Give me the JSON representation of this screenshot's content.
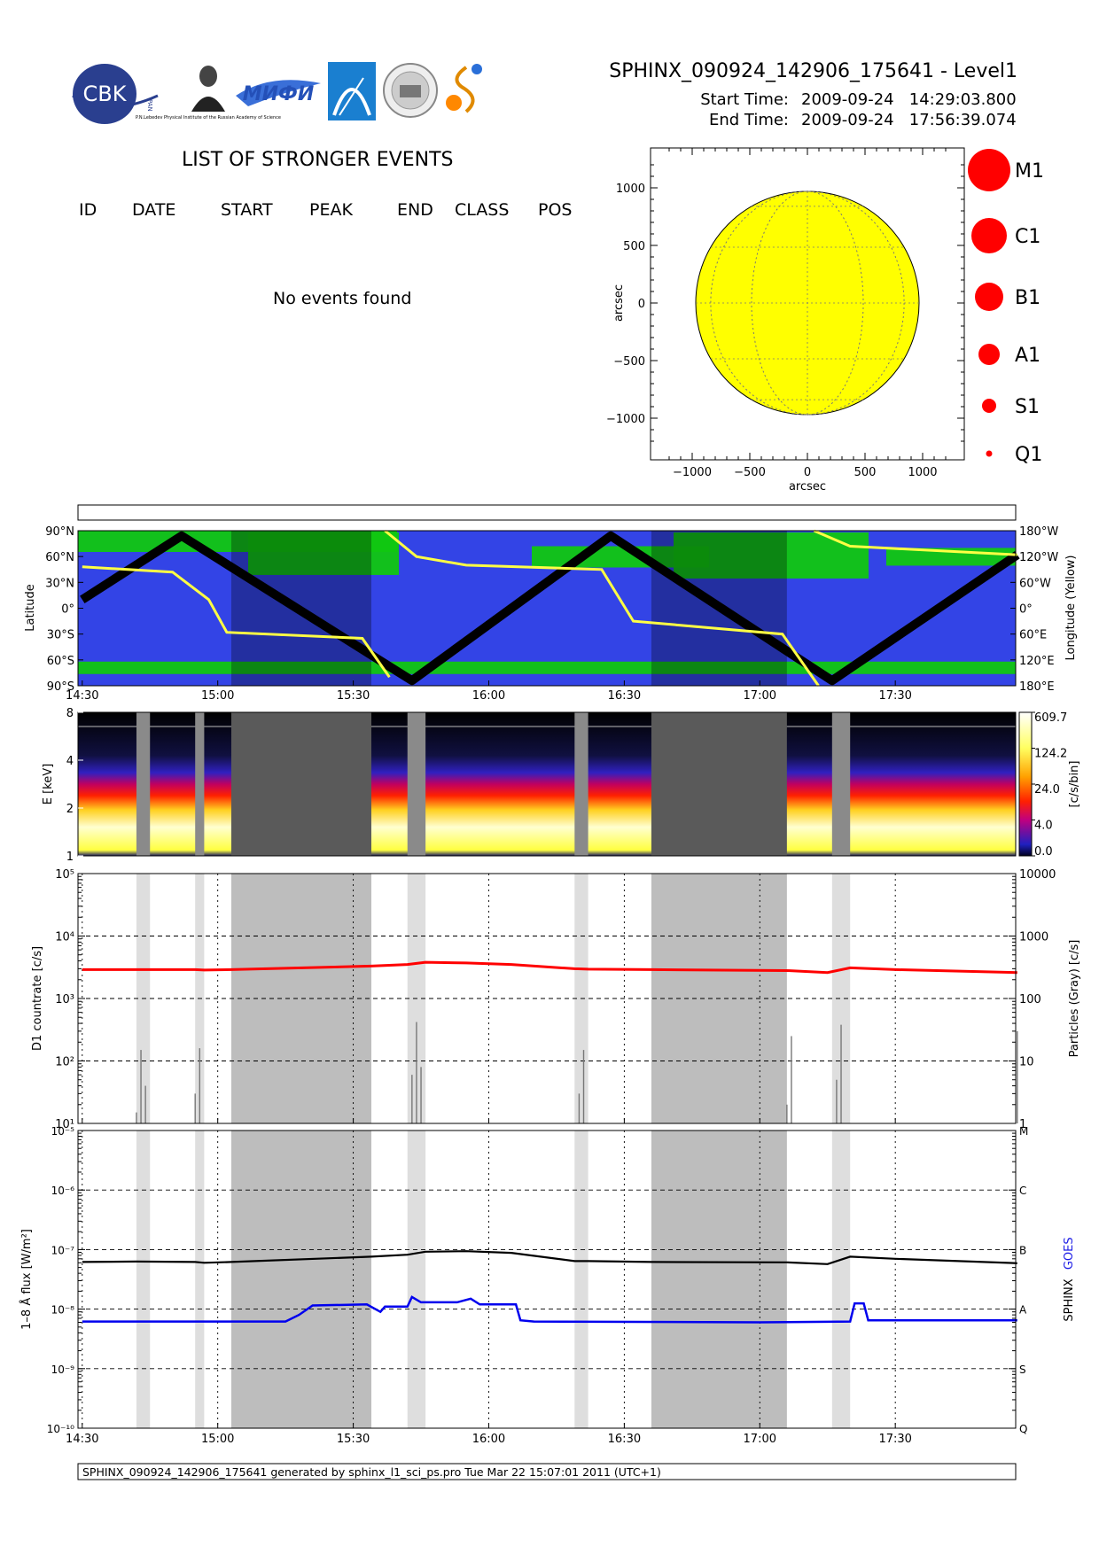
{
  "header": {
    "file_title": "SPHINX_090924_142906_175641 - Level1",
    "start_label": "Start Time:",
    "start_value": "2009-09-24   14:29:03.800",
    "end_label": "End Time:",
    "end_value": "2009-09-24   17:56:39.074"
  },
  "logos": {
    "cbk": "CBK",
    "cbk_sub": "PAN",
    "lebedev_caption": "P.N.Lebedev Physical Institute of the Russian Academy of Science",
    "mifi": "МИФИ"
  },
  "events": {
    "title": "LIST OF STRONGER EVENTS",
    "columns": [
      "ID",
      "DATE",
      "START",
      "PEAK",
      "END",
      "CLASS",
      "POS"
    ],
    "empty_text": "No events found"
  },
  "sun_map": {
    "xlabel": "arcsec",
    "ylabel": "arcsec",
    "xticks": [
      "−1000",
      "−500",
      "0",
      "500",
      "1000"
    ],
    "yticks": [
      "1000",
      "500",
      "0",
      "−500",
      "−1000"
    ],
    "disk_color": "#ffff00",
    "class_legend": [
      "M1",
      "C1",
      "B1",
      "A1",
      "S1",
      "Q1"
    ]
  },
  "footer": "SPHINX_090924_142906_175641 generated by sphinx_l1_sci_ps.pro Tue Mar 22 15:07:01 2011 (UTC+1)",
  "chart_data": [
    {
      "type": "line",
      "panel": "orbit",
      "x_ticks": [
        "14:30",
        "15:00",
        "15:30",
        "16:00",
        "16:30",
        "17:00",
        "17:30"
      ],
      "ylabel": "Latitude",
      "ylabel_right": "Longitude (Yellow)",
      "y_ticks": [
        "90°N",
        "60°N",
        "30°N",
        "0°",
        "30°S",
        "60°S",
        "90°S"
      ],
      "y_ticks_right": [
        "180°W",
        "120°W",
        "60°W",
        "0°",
        "60°E",
        "120°E",
        "180°E"
      ],
      "colors": {
        "background": "#3344e6",
        "zone": "#11c711",
        "latitude": "#000000",
        "longitude": "#ffff44"
      },
      "latitude_nodes": [
        [
          "14:30",
          10
        ],
        [
          "14:52",
          84
        ],
        [
          "15:43",
          -84
        ],
        [
          "16:27",
          84
        ],
        [
          "17:16",
          -84
        ],
        [
          "17:57",
          62
        ]
      ],
      "longitude_segments": [
        [
          [
            "14:30",
            48
          ],
          [
            "14:50",
            42
          ],
          [
            "14:58",
            10
          ],
          [
            "15:02",
            -28
          ],
          [
            "15:32",
            -35
          ],
          [
            "15:38",
            -80
          ]
        ],
        [
          [
            "15:37",
            90
          ],
          [
            "15:44",
            60
          ],
          [
            "15:55",
            50
          ],
          [
            "16:25",
            45
          ],
          [
            "16:32",
            -15
          ],
          [
            "17:05",
            -30
          ],
          [
            "17:13",
            -90
          ]
        ],
        [
          [
            "17:12",
            90
          ],
          [
            "17:20",
            72
          ],
          [
            "17:57",
            62
          ]
        ]
      ]
    },
    {
      "type": "heatmap",
      "panel": "spectrogram",
      "ylabel": "E [keV]",
      "y_ticks": [
        "1",
        "2",
        "4",
        "8"
      ],
      "colorbar_label": "[c/s/bin]",
      "colorbar_ticks": [
        "0.0",
        "4.0",
        "24.0",
        "124.2",
        "609.7"
      ],
      "gray_intervals": [
        [
          "14:42",
          "14:45"
        ],
        [
          "14:55",
          "14:57"
        ],
        [
          "15:03",
          "15:34"
        ],
        [
          "15:42",
          "15:46"
        ],
        [
          "16:19",
          "16:22"
        ],
        [
          "16:36",
          "17:06"
        ],
        [
          "17:16",
          "17:20"
        ]
      ]
    },
    {
      "type": "line",
      "panel": "countrate",
      "ylabel": "D1 countrate [c/s]",
      "ylabel_right": "Particles (Gray) [c/s]",
      "y_scale": "log",
      "ylim": [
        10,
        100000
      ],
      "y_ticks_right": [
        "1",
        "10",
        "100",
        "1000",
        "10000"
      ],
      "series": [
        {
          "name": "D1",
          "color": "#ff0000",
          "points": [
            [
              "14:30",
              2900
            ],
            [
              "14:42",
              2900
            ],
            [
              "14:45",
              2900
            ],
            [
              "14:55",
              2900
            ],
            [
              "14:57",
              2850
            ],
            [
              "15:03",
              2900
            ],
            [
              "15:34",
              3300
            ],
            [
              "15:42",
              3500
            ],
            [
              "15:46",
              3800
            ],
            [
              "15:55",
              3700
            ],
            [
              "16:05",
              3500
            ],
            [
              "16:19",
              3000
            ],
            [
              "16:22",
              2950
            ],
            [
              "16:36",
              2900
            ],
            [
              "17:06",
              2800
            ],
            [
              "17:15",
              2600
            ],
            [
              "17:20",
              3100
            ],
            [
              "17:30",
              2900
            ],
            [
              "17:57",
              2600
            ]
          ]
        },
        {
          "name": "Particles",
          "color": "#777777",
          "points": [
            [
              "14:42",
              15
            ],
            [
              "14:43",
              150
            ],
            [
              "14:44",
              40
            ],
            [
              "14:55",
              30
            ],
            [
              "14:56",
              160
            ],
            [
              "15:43",
              60
            ],
            [
              "15:44",
              420
            ],
            [
              "15:45",
              80
            ],
            [
              "16:20",
              30
            ],
            [
              "16:21",
              150
            ],
            [
              "17:06",
              20
            ],
            [
              "17:07",
              250
            ],
            [
              "17:17",
              50
            ],
            [
              "17:18",
              380
            ],
            [
              "17:57",
              300
            ]
          ]
        }
      ]
    },
    {
      "type": "line",
      "panel": "flux",
      "ylabel": "1–8 Å flux [W/m²]",
      "ylabel_right_parts": [
        "SPHINX",
        "GOES"
      ],
      "y_scale": "log",
      "ylim": [
        1e-10,
        1e-05
      ],
      "y_ticks": [
        "10⁻¹⁰",
        "10⁻⁹",
        "10⁻⁸",
        "10⁻⁷",
        "10⁻⁶",
        "10⁻⁵"
      ],
      "y_ticks_right": [
        "Q",
        "S",
        "A",
        "B",
        "C",
        "M"
      ],
      "x_ticks": [
        "14:30",
        "15:00",
        "15:30",
        "16:00",
        "16:30",
        "17:00",
        "17:30"
      ],
      "series": [
        {
          "name": "SPHINX",
          "color": "#000000",
          "points": [
            [
              "14:30",
              6.2e-08
            ],
            [
              "14:42",
              6.3e-08
            ],
            [
              "14:55",
              6.2e-08
            ],
            [
              "14:57",
              6e-08
            ],
            [
              "15:03",
              6.2e-08
            ],
            [
              "15:34",
              7.6e-08
            ],
            [
              "15:42",
              8.2e-08
            ],
            [
              "15:46",
              9.2e-08
            ],
            [
              "15:55",
              9.4e-08
            ],
            [
              "16:05",
              8.8e-08
            ],
            [
              "16:19",
              6.4e-08
            ],
            [
              "16:22",
              6.4e-08
            ],
            [
              "16:36",
              6.2e-08
            ],
            [
              "17:06",
              6.1e-08
            ],
            [
              "17:15",
              5.7e-08
            ],
            [
              "17:20",
              7.6e-08
            ],
            [
              "17:30",
              7e-08
            ],
            [
              "17:57",
              5.9e-08
            ]
          ]
        },
        {
          "name": "GOES",
          "color": "#0000ee",
          "points": [
            [
              "14:30",
              6.2e-09
            ],
            [
              "15:15",
              6.2e-09
            ],
            [
              "15:18",
              8e-09
            ],
            [
              "15:21",
              1.15e-08
            ],
            [
              "15:33",
              1.2e-08
            ],
            [
              "15:36",
              9e-09
            ],
            [
              "15:37",
              1.1e-08
            ],
            [
              "15:42",
              1.1e-08
            ],
            [
              "15:43",
              1.6e-08
            ],
            [
              "15:45",
              1.3e-08
            ],
            [
              "15:53",
              1.3e-08
            ],
            [
              "15:56",
              1.5e-08
            ],
            [
              "15:58",
              1.2e-08
            ],
            [
              "16:06",
              1.2e-08
            ],
            [
              "16:07",
              6.5e-09
            ],
            [
              "16:10",
              6.2e-09
            ],
            [
              "17:00",
              6e-09
            ],
            [
              "17:20",
              6.2e-09
            ],
            [
              "17:21",
              1.25e-08
            ],
            [
              "17:23",
              1.25e-08
            ],
            [
              "17:24",
              6.5e-09
            ],
            [
              "17:57",
              6.5e-09
            ]
          ]
        }
      ]
    }
  ]
}
